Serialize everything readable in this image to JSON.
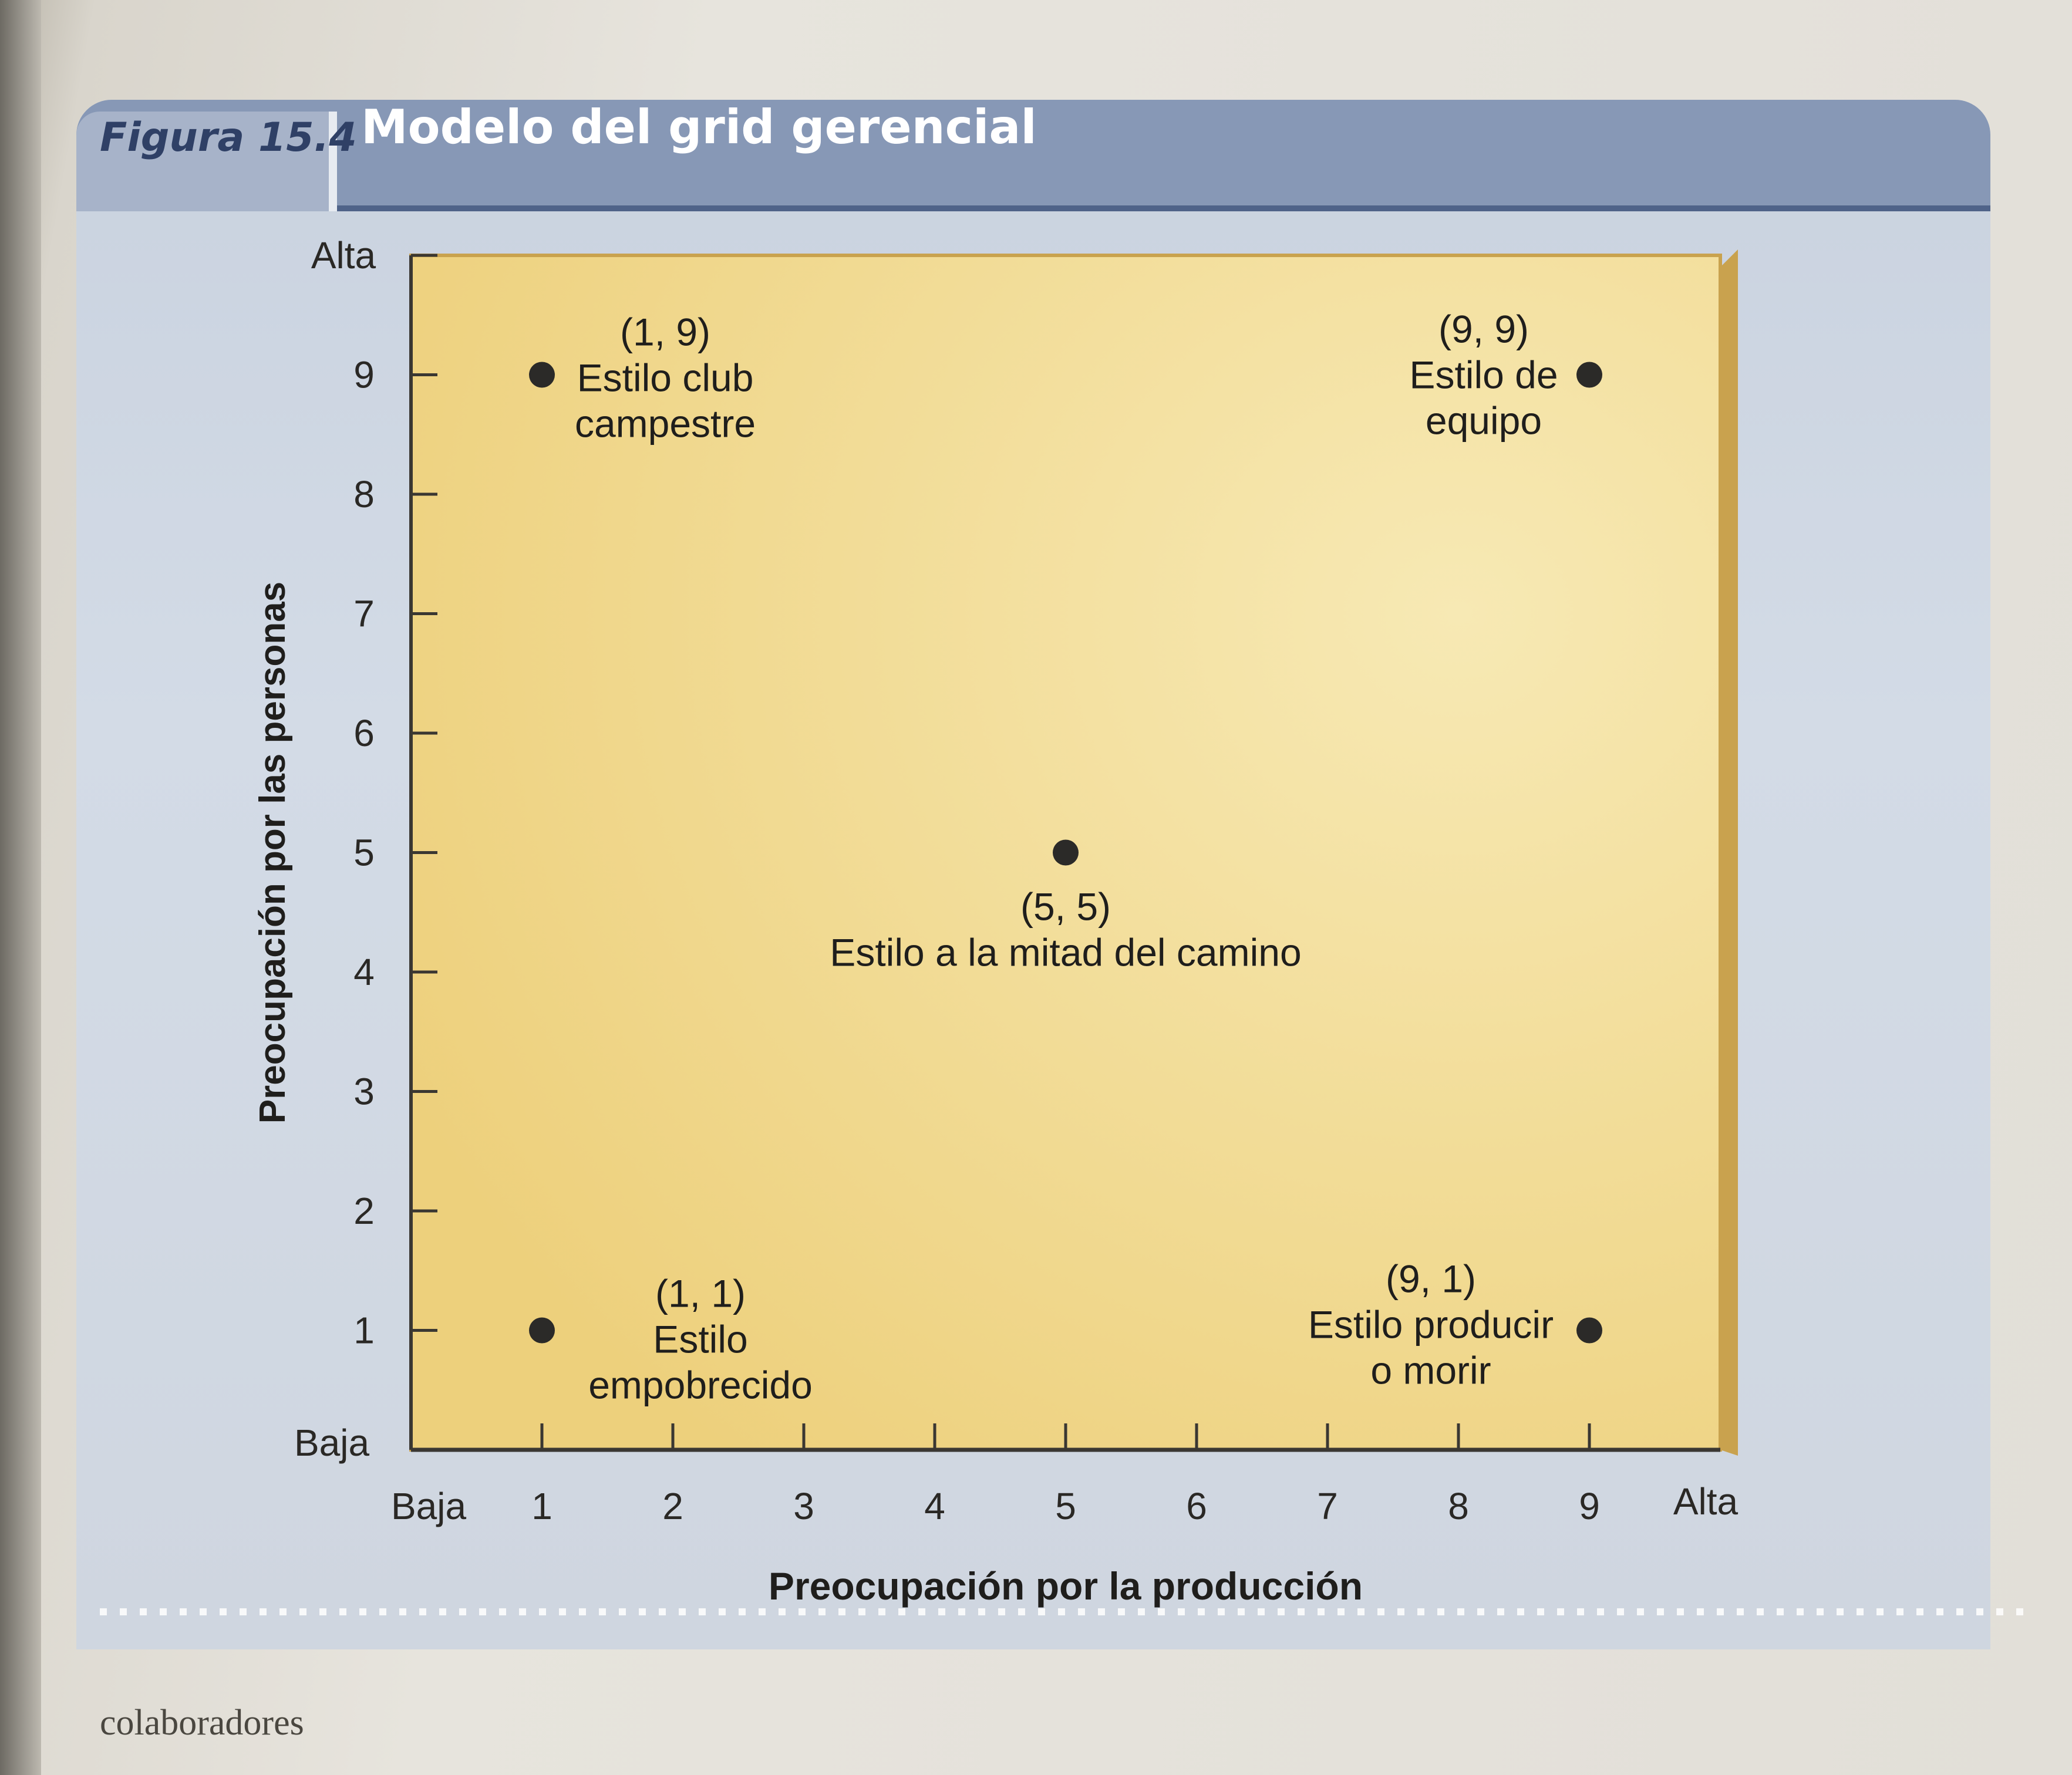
{
  "figure": {
    "number": "Figura 15.4",
    "title": "Modelo del grid gerencial"
  },
  "page_text": "colaboradores",
  "chart_data": {
    "type": "scatter",
    "title": "Modelo del grid gerencial",
    "xlabel": "Preocupación por la producción",
    "ylabel": "Preocupación por las personas",
    "xlim": [
      0,
      10
    ],
    "ylim": [
      0,
      10
    ],
    "x_ticks": [
      1,
      2,
      3,
      4,
      5,
      6,
      7,
      8,
      9
    ],
    "y_ticks": [
      1,
      2,
      3,
      4,
      5,
      6,
      7,
      8,
      9
    ],
    "x_low_label": "Baja",
    "x_high_label": "Alta",
    "y_low_label": "Baja",
    "y_high_label": "Alta",
    "grid": false,
    "colors": {
      "plot_bg": "#f0d78a",
      "point": "#2b2a28",
      "axis": "#3a3732"
    },
    "points": [
      {
        "x": 1,
        "y": 9,
        "coord_label": "(1, 9)",
        "label_lines": [
          "Estilo club",
          "campestre"
        ]
      },
      {
        "x": 9,
        "y": 9,
        "coord_label": "(9, 9)",
        "label_lines": [
          "Estilo de",
          "equipo"
        ]
      },
      {
        "x": 5,
        "y": 5,
        "coord_label": "(5, 5)",
        "label_lines": [
          "Estilo a la mitad del camino"
        ]
      },
      {
        "x": 1,
        "y": 1,
        "coord_label": "(1, 1)",
        "label_lines": [
          "Estilo",
          "empobrecido"
        ]
      },
      {
        "x": 9,
        "y": 1,
        "coord_label": "(9, 1)",
        "label_lines": [
          "Estilo producir",
          "o morir"
        ]
      }
    ]
  }
}
